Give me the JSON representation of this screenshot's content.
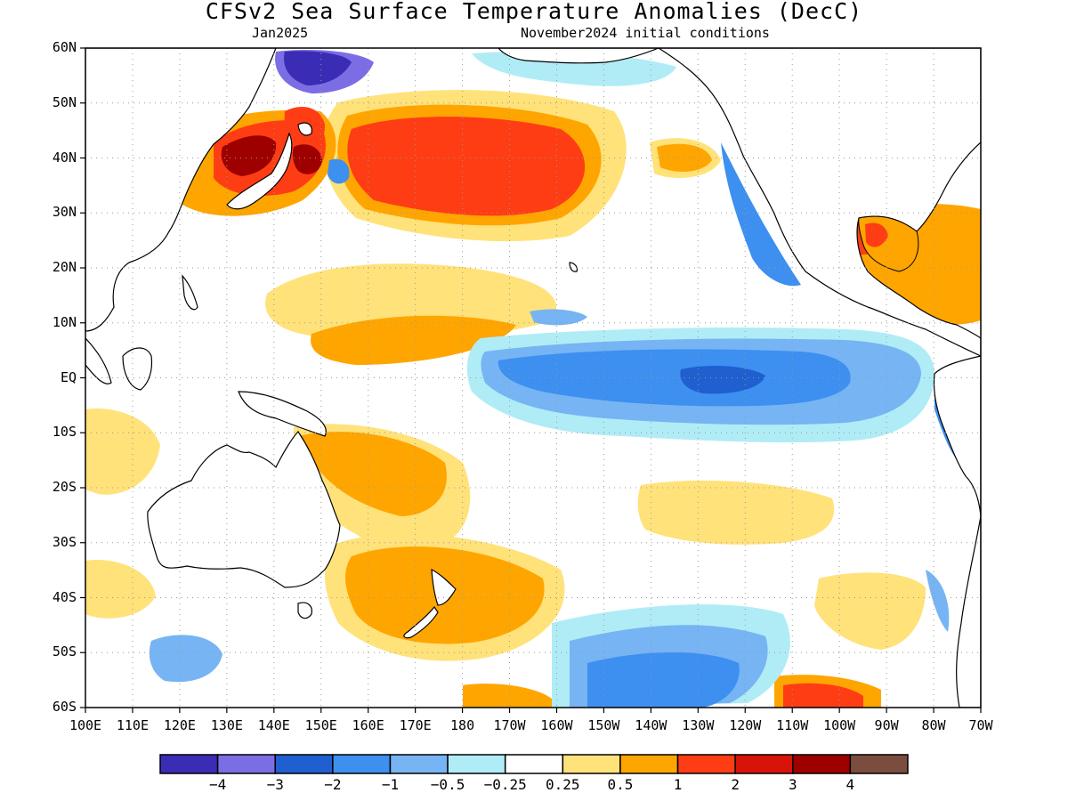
{
  "title": "CFSv2 Sea Surface Temperature Anomalies (DecC)",
  "subtitle_left": "Jan2025",
  "subtitle_right": "November2024 initial conditions",
  "lat_labels": [
    "60N",
    "50N",
    "40N",
    "30N",
    "20N",
    "10N",
    "EQ",
    "10S",
    "20S",
    "30S",
    "40S",
    "50S",
    "60S"
  ],
  "lon_labels": [
    "100E",
    "110E",
    "120E",
    "130E",
    "140E",
    "150E",
    "160E",
    "170E",
    "180",
    "170W",
    "160W",
    "150W",
    "140W",
    "130W",
    "120W",
    "110W",
    "100W",
    "90W",
    "80W",
    "70W"
  ],
  "colorbar": {
    "colors": [
      "#3a2cb5",
      "#7b6ee4",
      "#1f5fd0",
      "#3d8ff0",
      "#76b4f4",
      "#b0ecf6",
      "#ffffff",
      "#ffe27a",
      "#ffa500",
      "#ff3d14",
      "#d8130a",
      "#9e0000",
      "#7b4d3f"
    ],
    "labels": [
      "−4",
      "−3",
      "−2",
      "−1",
      "−0.5",
      "−0.25",
      "0.25",
      "0.5",
      "1",
      "2",
      "3",
      "4"
    ]
  },
  "colors": {
    "land": "#ffffff",
    "coastline": "#000000",
    "grid": "#9a9a9a"
  }
}
